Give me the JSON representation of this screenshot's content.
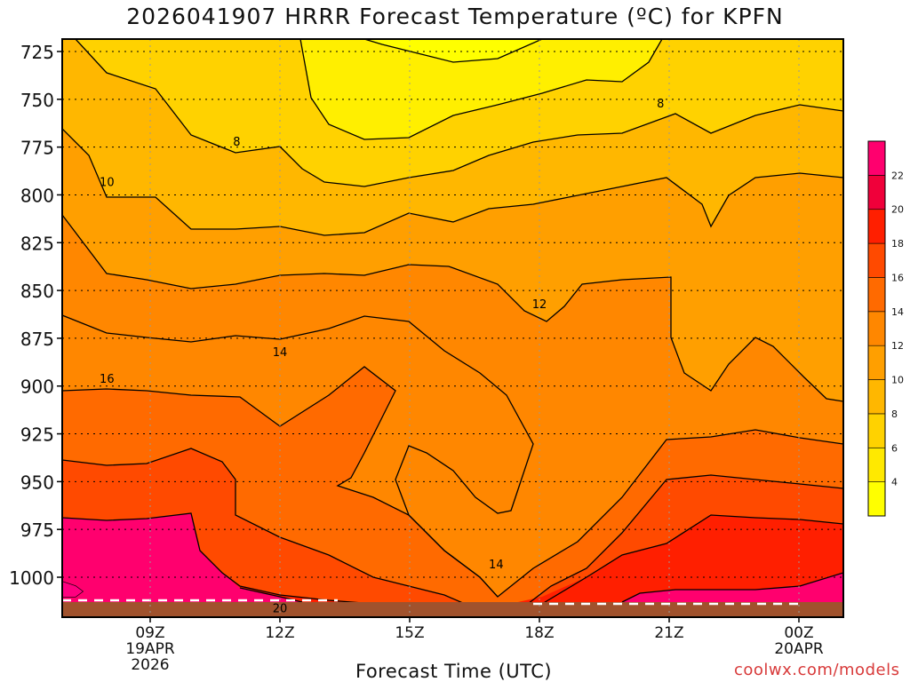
{
  "title": "2026041907 HRRR Forecast Temperature (ºC) for KPFN",
  "xlabel": "Forecast Time (UTC)",
  "credit": "coolwx.com/models",
  "chart_data": {
    "type": "contour",
    "title": "2026041907 HRRR Forecast Temperature (ºC) for KPFN",
    "xlabel": "Forecast Time (UTC)",
    "ylabel": "",
    "x_ticks": [
      {
        "hour": 9,
        "lines": [
          "09Z",
          "19APR",
          "2026"
        ]
      },
      {
        "hour": 12,
        "lines": [
          "12Z"
        ]
      },
      {
        "hour": 15,
        "lines": [
          "15Z"
        ]
      },
      {
        "hour": 18,
        "lines": [
          "18Z"
        ]
      },
      {
        "hour": 21,
        "lines": [
          "21Z"
        ]
      },
      {
        "hour": 24,
        "lines": [
          "00Z",
          "20APR"
        ]
      }
    ],
    "xlim_hours": [
      7,
      25
    ],
    "y_ticks": [
      725,
      750,
      775,
      800,
      825,
      850,
      875,
      900,
      925,
      950,
      975,
      1000
    ],
    "ylim_hpa": [
      1022,
      720
    ],
    "grid": true,
    "colorbar": {
      "levels": [
        2,
        4,
        6,
        8,
        10,
        12,
        14,
        16,
        18,
        20,
        22,
        24
      ],
      "labels": [
        4,
        6,
        8,
        10,
        12,
        14,
        16,
        18,
        20,
        22
      ],
      "colors": [
        "#ffff00",
        "#ffe900",
        "#ffd200",
        "#ffb700",
        "#ff9f00",
        "#ff8700",
        "#ff6a00",
        "#ff4a00",
        "#ff1f00",
        "#f0003a",
        "#ff006e"
      ]
    },
    "contour_labels": [
      {
        "text": "8",
        "hour": 11.0,
        "hpa": 772
      },
      {
        "text": "8",
        "hour": 20.8,
        "hpa": 752
      },
      {
        "text": "10",
        "hour": 8.0,
        "hpa": 793
      },
      {
        "text": "12",
        "hour": 18.0,
        "hpa": 857
      },
      {
        "text": "14",
        "hour": 12.0,
        "hpa": 882
      },
      {
        "text": "16",
        "hour": 8.0,
        "hpa": 896
      },
      {
        "text": "14",
        "hour": 17.0,
        "hpa": 993
      },
      {
        "text": "20",
        "hour": 12.0,
        "hpa": 1016
      }
    ],
    "surface_pressure_hpa": 1021
  }
}
